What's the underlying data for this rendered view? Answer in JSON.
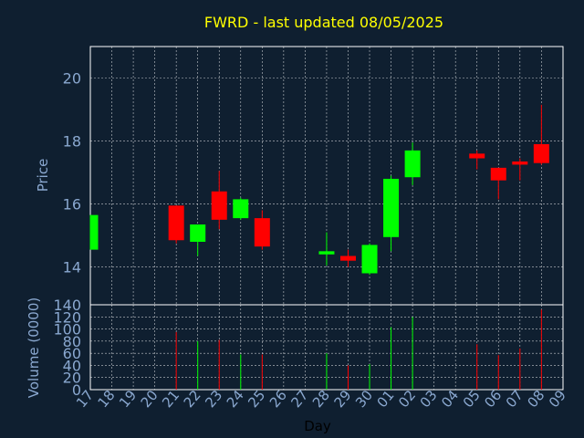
{
  "chart_data": {
    "type": "candlestick",
    "title": "FWRD - last updated 08/05/2025",
    "xlabel": "Day",
    "price_panel": {
      "ylabel": "Price",
      "ylim": [
        12.8,
        21.0
      ],
      "yticks": [
        "14",
        "16",
        "18",
        "20"
      ],
      "grid": true
    },
    "volume_panel": {
      "ylabel": "Volume (0000)",
      "ylim": [
        0,
        140
      ],
      "yticks": [
        "0",
        "20",
        "40",
        "60",
        "80",
        "100",
        "120",
        "140"
      ],
      "grid": true
    },
    "categories": [
      "17",
      "18",
      "19",
      "20",
      "21",
      "22",
      "23",
      "24",
      "25",
      "26",
      "27",
      "28",
      "29",
      "30",
      "01",
      "02",
      "03",
      "04",
      "05",
      "06",
      "07",
      "08",
      "09"
    ],
    "candles": [
      {
        "day": "17",
        "open": 14.55,
        "close": 15.65,
        "high": 15.65,
        "low": 14.55,
        "volume": 0
      },
      {
        "day": "18",
        "open": null,
        "close": null,
        "high": null,
        "low": null,
        "volume": 0
      },
      {
        "day": "19",
        "open": null,
        "close": null,
        "high": null,
        "low": null,
        "volume": 0
      },
      {
        "day": "20",
        "open": null,
        "close": null,
        "high": null,
        "low": null,
        "volume": 0
      },
      {
        "day": "21",
        "open": 15.95,
        "close": 14.85,
        "high": 15.95,
        "low": 14.75,
        "volume": 95
      },
      {
        "day": "22",
        "open": 14.8,
        "close": 15.35,
        "high": 15.35,
        "low": 14.35,
        "volume": 80
      },
      {
        "day": "23",
        "open": 16.4,
        "close": 15.5,
        "high": 17.05,
        "low": 15.2,
        "volume": 82
      },
      {
        "day": "24",
        "open": 15.55,
        "close": 16.15,
        "high": 16.2,
        "low": 15.5,
        "volume": 58
      },
      {
        "day": "25",
        "open": 15.55,
        "close": 14.65,
        "high": 15.8,
        "low": 14.55,
        "volume": 58
      },
      {
        "day": "26",
        "open": null,
        "close": null,
        "high": null,
        "low": null,
        "volume": 0
      },
      {
        "day": "27",
        "open": null,
        "close": null,
        "high": null,
        "low": null,
        "volume": 0
      },
      {
        "day": "28",
        "open": 14.4,
        "close": 14.5,
        "high": 15.1,
        "low": 14.05,
        "volume": 60
      },
      {
        "day": "29",
        "open": 14.35,
        "close": 14.2,
        "high": 14.55,
        "low": 14.0,
        "volume": 40
      },
      {
        "day": "30",
        "open": 13.8,
        "close": 14.7,
        "high": 14.75,
        "low": 13.75,
        "volume": 42
      },
      {
        "day": "01",
        "open": 14.95,
        "close": 16.8,
        "high": 16.9,
        "low": 14.5,
        "volume": 103
      },
      {
        "day": "02",
        "open": 16.85,
        "close": 17.7,
        "high": 17.95,
        "low": 16.6,
        "volume": 120
      },
      {
        "day": "03",
        "open": null,
        "close": null,
        "high": null,
        "low": null,
        "volume": 0
      },
      {
        "day": "04",
        "open": null,
        "close": null,
        "high": null,
        "low": null,
        "volume": 0
      },
      {
        "day": "05",
        "open": 17.6,
        "close": 17.45,
        "high": 17.7,
        "low": 17.1,
        "volume": 75
      },
      {
        "day": "06",
        "open": 17.15,
        "close": 16.75,
        "high": 17.15,
        "low": 16.15,
        "volume": 57
      },
      {
        "day": "07",
        "open": 17.35,
        "close": 17.25,
        "high": 17.45,
        "low": 16.75,
        "volume": 68
      },
      {
        "day": "08",
        "open": 17.9,
        "close": 17.3,
        "high": 19.15,
        "low": 17.25,
        "volume": 132
      },
      {
        "day": "09",
        "open": null,
        "close": null,
        "high": null,
        "low": null,
        "volume": 0
      }
    ],
    "colors": {
      "background": "#0f1f30",
      "up": "#00ff00",
      "down": "#ff0000",
      "grid": "#ffffff",
      "title": "#ffff00",
      "axis_text": "#8aa8d0"
    }
  }
}
